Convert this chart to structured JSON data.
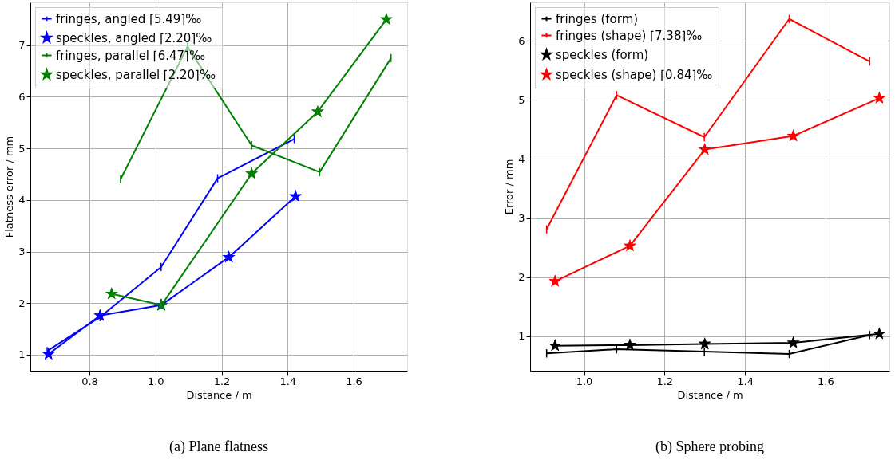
{
  "chart_data": [
    {
      "type": "line",
      "title": "(a) Plane flatness",
      "xlabel": "Distance / m",
      "ylabel": "Flatness error / mm",
      "xlim": [
        0.621,
        1.762
      ],
      "ylim": [
        0.69,
        7.83
      ],
      "xticks": [
        0.8,
        {
          "value": 1.0,
          "label": "1.0"
        },
        1.2,
        1.4,
        1.6
      ],
      "yticks": [
        1,
        2,
        3,
        4,
        5,
        6,
        7
      ],
      "grid": true,
      "legend": "top left",
      "series": [
        {
          "name": "fringes, angled ⌈5.49⌉‰",
          "color": "#0000ff",
          "marker": "none",
          "x": [
            0.672,
            0.832,
            1.017,
            1.188,
            1.42
          ],
          "values": [
            1.07,
            1.73,
            2.7,
            4.42,
            5.18
          ],
          "errors": [
            0.08,
            0.08,
            0.08,
            0.08,
            0.08
          ]
        },
        {
          "name": "speckles, angled ⌈2.20⌉‰",
          "color": "#0000ff",
          "marker": "star",
          "x": [
            0.676,
            0.832,
            1.017,
            1.222,
            1.424
          ],
          "values": [
            1.01,
            1.76,
            1.96,
            2.89,
            4.07
          ]
        },
        {
          "name": "fringes, parallel ⌈6.47⌉‰",
          "color": "#008000",
          "marker": "none",
          "x": [
            0.894,
            1.097,
            1.291,
            1.497,
            1.713
          ],
          "values": [
            4.4,
            6.97,
            5.06,
            4.54,
            6.75
          ],
          "errors": [
            0.08,
            0.08,
            0.08,
            0.08,
            0.08
          ]
        },
        {
          "name": "speckles, parallel ⌈2.20⌉‰",
          "color": "#008000",
          "marker": "star",
          "x": [
            0.867,
            1.018,
            1.291,
            1.491,
            1.699
          ],
          "values": [
            2.18,
            1.96,
            4.51,
            5.71,
            7.5
          ]
        }
      ]
    },
    {
      "type": "line",
      "title": "(b) Sphere probing",
      "xlabel": "Distance / m",
      "ylabel": "Error / mm",
      "xlim": [
        0.866,
        1.759
      ],
      "ylim": [
        0.417,
        6.65
      ],
      "xticks": [
        {
          "value": 1.0,
          "label": "1.0"
        },
        1.2,
        1.4,
        1.6
      ],
      "yticks": [
        1,
        2,
        3,
        4,
        5,
        6
      ],
      "grid": true,
      "legend": "top left",
      "series": [
        {
          "name": "fringes (form)",
          "color": "#000000",
          "marker": "none",
          "x": [
            0.907,
            1.081,
            1.299,
            1.51,
            1.71
          ],
          "values": [
            0.71,
            0.78,
            0.74,
            0.7,
            1.02
          ],
          "errors": [
            0.07,
            0.07,
            0.07,
            0.07,
            0.07
          ]
        },
        {
          "name": "fringes (shape) ⌈7.38⌉‰",
          "color": "#ff0000",
          "marker": "none",
          "x": [
            0.907,
            1.081,
            1.299,
            1.51,
            1.71
          ],
          "values": [
            2.81,
            5.08,
            4.37,
            6.37,
            5.65
          ],
          "errors": [
            0.07,
            0.07,
            0.07,
            0.07,
            0.07
          ]
        },
        {
          "name": "speckles (form)",
          "color": "#000000",
          "marker": "star",
          "x": [
            0.928,
            1.114,
            1.3,
            1.52,
            1.734
          ],
          "values": [
            0.84,
            0.85,
            0.87,
            0.89,
            1.04
          ]
        },
        {
          "name": "speckles (shape) ⌈0.84⌉‰",
          "color": "#ff0000",
          "marker": "star",
          "x": [
            0.928,
            1.114,
            1.3,
            1.52,
            1.734
          ],
          "values": [
            1.93,
            2.53,
            4.16,
            4.39,
            5.03
          ]
        }
      ]
    }
  ]
}
